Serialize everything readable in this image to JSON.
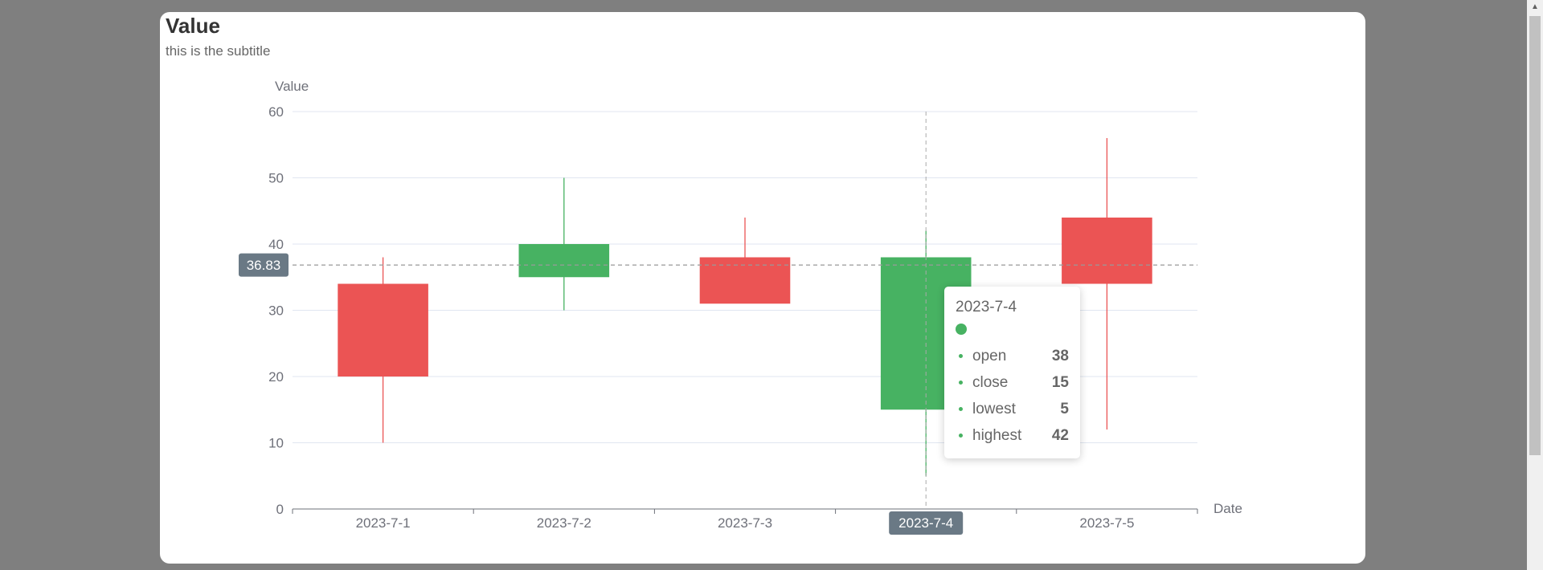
{
  "chart_data": {
    "type": "candlestick",
    "title": "Value",
    "subtitle": "this is the subtitle",
    "ylabel": "Value",
    "xlabel": "Date",
    "categories": [
      "2023-7-1",
      "2023-7-2",
      "2023-7-3",
      "2023-7-4",
      "2023-7-5"
    ],
    "series": [
      {
        "fields": [
          "open",
          "close",
          "lowest",
          "highest"
        ],
        "values": [
          [
            20,
            34,
            10,
            38
          ],
          [
            40,
            35,
            30,
            50
          ],
          [
            31,
            38,
            33,
            44
          ],
          [
            38,
            15,
            5,
            42
          ],
          [
            34,
            44,
            12,
            56
          ]
        ]
      }
    ],
    "ylim": [
      0,
      60
    ],
    "yticks": [
      0,
      10,
      20,
      30,
      40,
      50,
      60
    ],
    "grid": true,
    "colors": {
      "up": "#eb5454",
      "down": "#47b262",
      "axis": "#6e7079",
      "grid": "#e0e6f1",
      "pointer_label_bg": "#6a7985"
    },
    "crosshair": {
      "y_value": "36.83",
      "x_category": "2023-7-4"
    },
    "tooltip": {
      "date": "2023-7-4",
      "rows": [
        {
          "name": "open",
          "value": "38"
        },
        {
          "name": "close",
          "value": "15"
        },
        {
          "name": "lowest",
          "value": "5"
        },
        {
          "name": "highest",
          "value": "42"
        }
      ]
    }
  }
}
